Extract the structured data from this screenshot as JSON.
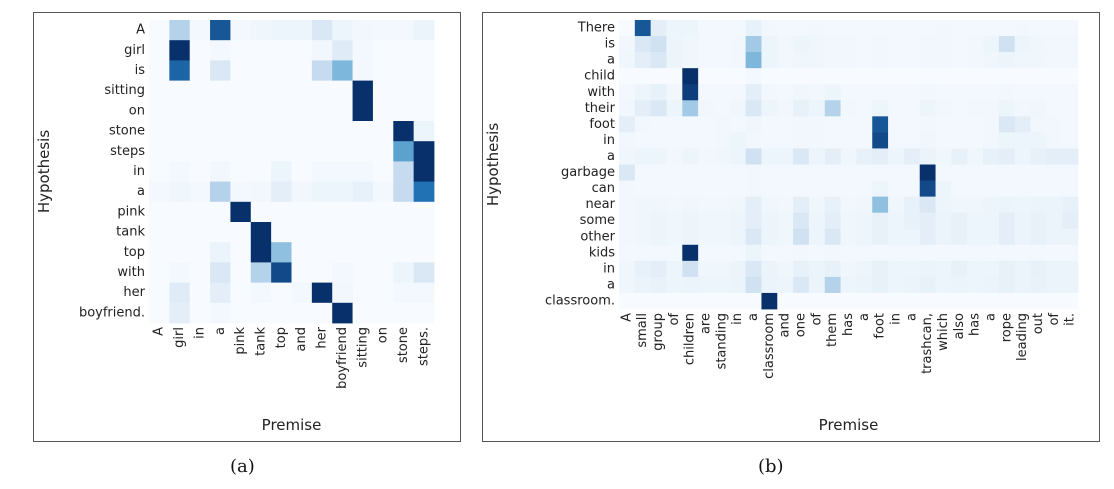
{
  "captions": [
    "(a)",
    "(b)"
  ],
  "chart_data": [
    {
      "type": "heatmap",
      "title": "",
      "xlabel": "Premise",
      "ylabel": "Hypothesis",
      "x": [
        "A",
        "girl",
        "in",
        "a",
        "pink",
        "tank",
        "top",
        "and",
        "her",
        "boyfriend",
        "sitting",
        "on",
        "stone",
        "steps."
      ],
      "y": [
        "A",
        "girl",
        "is",
        "sitting",
        "on",
        "stone",
        "steps",
        "in",
        "a",
        "pink",
        "tank",
        "top",
        "with",
        "her",
        "boyfriend."
      ],
      "colormap": "Blues",
      "range": [
        0,
        1
      ],
      "values": [
        [
          0,
          0.3,
          0.02,
          0.85,
          0.02,
          0.04,
          0.05,
          0.05,
          0.15,
          0.05,
          0.03,
          0.02,
          0.02,
          0.06
        ],
        [
          0,
          1.0,
          0,
          0.02,
          0,
          0,
          0,
          0,
          0.03,
          0.12,
          0.02,
          0,
          0,
          0
        ],
        [
          0,
          0.8,
          0,
          0.15,
          0,
          0,
          0,
          0,
          0.25,
          0.45,
          0.02,
          0,
          0,
          0
        ],
        [
          0,
          0,
          0,
          0,
          0,
          0,
          0,
          0,
          0,
          0,
          1.0,
          0,
          0,
          0
        ],
        [
          0,
          0,
          0,
          0,
          0,
          0,
          0,
          0,
          0,
          0,
          1.0,
          0,
          0,
          0
        ],
        [
          0,
          0,
          0,
          0,
          0,
          0,
          0,
          0,
          0,
          0,
          0,
          0,
          1.0,
          0.05
        ],
        [
          0,
          0,
          0,
          0,
          0,
          0,
          0,
          0,
          0,
          0,
          0,
          0,
          0.55,
          1.0
        ],
        [
          0,
          0.02,
          0,
          0.03,
          0,
          0,
          0.05,
          0,
          0.02,
          0.02,
          0.02,
          0,
          0.25,
          1.0
        ],
        [
          0.02,
          0.04,
          0.02,
          0.3,
          0.02,
          0.03,
          0.1,
          0.03,
          0.05,
          0.05,
          0.08,
          0.02,
          0.25,
          0.75
        ],
        [
          0,
          0,
          0,
          0,
          1.0,
          0,
          0,
          0,
          0,
          0,
          0,
          0,
          0,
          0
        ],
        [
          0,
          0,
          0,
          0,
          0,
          1.0,
          0,
          0,
          0,
          0,
          0,
          0,
          0,
          0
        ],
        [
          0,
          0,
          0,
          0.06,
          0,
          1.0,
          0.4,
          0,
          0,
          0,
          0,
          0,
          0,
          0
        ],
        [
          0,
          0.02,
          0,
          0.15,
          0,
          0.3,
          0.9,
          0,
          0,
          0.02,
          0,
          0,
          0.05,
          0.15
        ],
        [
          0,
          0.12,
          0,
          0.1,
          0,
          0.02,
          0,
          0.02,
          1.0,
          0.03,
          0,
          0,
          0.02,
          0.02
        ],
        [
          0,
          0.1,
          0,
          0.02,
          0,
          0,
          0,
          0,
          0,
          1.0,
          0,
          0,
          0,
          0
        ]
      ]
    },
    {
      "type": "heatmap",
      "title": "",
      "xlabel": "Premise",
      "ylabel": "Hypothesis",
      "x": [
        "A",
        "small",
        "group",
        "of",
        "children",
        "are",
        "standing",
        "in",
        "a",
        "classroom",
        "and",
        "one",
        "of",
        "them",
        "has",
        "a",
        "foot",
        "in",
        "a",
        "trashcan,",
        "which",
        "also",
        "has",
        "a",
        "rope",
        "leading",
        "out",
        "of",
        "it."
      ],
      "y": [
        "There",
        "is",
        "a",
        "child",
        "with",
        "their",
        "foot",
        "in",
        "a",
        "garbage",
        "can",
        "near",
        "some",
        "other",
        "kids",
        "in",
        "a",
        "classroom."
      ],
      "colormap": "Blues",
      "range": [
        0,
        1
      ],
      "values": [
        [
          0,
          0.85,
          0.1,
          0.05,
          0.05,
          0.02,
          0.02,
          0.02,
          0.08,
          0.03,
          0.02,
          0.02,
          0.03,
          0.02,
          0.02,
          0.02,
          0.02,
          0.02,
          0.02,
          0.02,
          0.03,
          0.02,
          0.02,
          0.02,
          0.02,
          0.03,
          0.02,
          0.02,
          0.02
        ],
        [
          0.03,
          0.15,
          0.2,
          0.05,
          0.04,
          0.02,
          0.02,
          0.03,
          0.35,
          0.05,
          0.03,
          0.05,
          0.04,
          0.03,
          0.03,
          0.02,
          0.03,
          0.02,
          0.02,
          0.03,
          0.03,
          0.02,
          0.03,
          0.05,
          0.2,
          0.05,
          0.04,
          0.03,
          0.03
        ],
        [
          0.04,
          0.1,
          0.15,
          0.05,
          0.04,
          0.02,
          0.02,
          0.03,
          0.45,
          0.05,
          0.03,
          0.04,
          0.04,
          0.03,
          0.03,
          0.02,
          0.03,
          0.02,
          0.02,
          0.03,
          0.03,
          0.02,
          0.03,
          0.04,
          0.05,
          0.04,
          0.04,
          0.03,
          0.03
        ],
        [
          0,
          0,
          0,
          0,
          1.0,
          0,
          0,
          0,
          0.02,
          0,
          0,
          0,
          0,
          0,
          0,
          0,
          0,
          0,
          0,
          0,
          0,
          0,
          0,
          0,
          0,
          0,
          0,
          0,
          0
        ],
        [
          0.02,
          0.05,
          0.08,
          0.03,
          0.95,
          0.02,
          0.02,
          0.02,
          0.1,
          0.03,
          0.02,
          0.04,
          0.03,
          0.05,
          0.02,
          0.02,
          0.02,
          0.02,
          0.02,
          0.03,
          0.02,
          0.02,
          0.02,
          0.02,
          0.03,
          0.02,
          0.02,
          0.02,
          0.02
        ],
        [
          0.03,
          0.1,
          0.15,
          0.05,
          0.35,
          0.03,
          0.02,
          0.04,
          0.15,
          0.05,
          0.03,
          0.08,
          0.05,
          0.3,
          0.03,
          0.02,
          0.05,
          0.02,
          0.02,
          0.05,
          0.03,
          0.02,
          0.03,
          0.03,
          0.05,
          0.03,
          0.04,
          0.02,
          0.02
        ],
        [
          0.1,
          0.03,
          0.02,
          0.02,
          0.02,
          0.02,
          0.03,
          0.02,
          0.04,
          0.02,
          0.02,
          0.03,
          0.03,
          0.02,
          0.02,
          0.02,
          0.85,
          0.02,
          0.02,
          0.03,
          0.02,
          0.02,
          0.02,
          0.03,
          0.15,
          0.1,
          0.03,
          0.03,
          0.02
        ],
        [
          0.03,
          0.02,
          0.02,
          0.02,
          0.02,
          0.02,
          0.03,
          0.05,
          0.03,
          0.02,
          0.02,
          0.03,
          0.03,
          0.02,
          0.02,
          0.02,
          0.9,
          0.02,
          0.02,
          0.04,
          0.02,
          0.02,
          0.02,
          0.03,
          0.05,
          0.05,
          0.05,
          0.03,
          0.02
        ],
        [
          0.04,
          0.05,
          0.05,
          0.03,
          0.05,
          0.03,
          0.04,
          0.05,
          0.2,
          0.05,
          0.05,
          0.15,
          0.05,
          0.1,
          0.04,
          0.08,
          0.1,
          0.05,
          0.1,
          0.06,
          0.04,
          0.08,
          0.04,
          0.08,
          0.1,
          0.05,
          0.08,
          0.1,
          0.1
        ],
        [
          0.15,
          0.02,
          0.02,
          0.02,
          0.02,
          0.02,
          0.02,
          0.02,
          0.03,
          0.02,
          0.02,
          0.02,
          0.02,
          0.02,
          0.02,
          0.02,
          0.02,
          0.02,
          0.02,
          1.0,
          0.02,
          0.02,
          0.02,
          0.02,
          0.02,
          0.02,
          0.02,
          0.02,
          0.02
        ],
        [
          0.03,
          0.02,
          0.02,
          0.02,
          0.02,
          0.02,
          0.02,
          0.02,
          0.03,
          0.02,
          0.02,
          0.02,
          0.02,
          0.02,
          0.02,
          0.02,
          0.05,
          0.02,
          0.02,
          0.9,
          0.05,
          0.02,
          0.02,
          0.02,
          0.02,
          0.02,
          0.02,
          0.02,
          0.02
        ],
        [
          0.03,
          0.04,
          0.04,
          0.03,
          0.04,
          0.03,
          0.03,
          0.04,
          0.1,
          0.04,
          0.03,
          0.1,
          0.04,
          0.08,
          0.03,
          0.04,
          0.4,
          0.04,
          0.08,
          0.15,
          0.05,
          0.04,
          0.04,
          0.05,
          0.06,
          0.05,
          0.06,
          0.06,
          0.08
        ],
        [
          0.03,
          0.04,
          0.05,
          0.04,
          0.05,
          0.04,
          0.04,
          0.05,
          0.1,
          0.05,
          0.04,
          0.15,
          0.05,
          0.1,
          0.04,
          0.05,
          0.08,
          0.05,
          0.08,
          0.1,
          0.06,
          0.08,
          0.05,
          0.05,
          0.1,
          0.06,
          0.08,
          0.06,
          0.1
        ],
        [
          0.03,
          0.04,
          0.05,
          0.04,
          0.05,
          0.04,
          0.04,
          0.05,
          0.15,
          0.05,
          0.04,
          0.2,
          0.05,
          0.15,
          0.04,
          0.05,
          0.08,
          0.05,
          0.05,
          0.1,
          0.06,
          0.08,
          0.05,
          0.05,
          0.1,
          0.06,
          0.08,
          0.06,
          0.06
        ],
        [
          0.02,
          0.02,
          0.02,
          0.02,
          1.0,
          0.02,
          0.02,
          0.02,
          0.05,
          0.02,
          0.02,
          0.03,
          0.02,
          0.03,
          0.02,
          0.02,
          0.02,
          0.02,
          0.02,
          0.02,
          0.02,
          0.02,
          0.02,
          0.02,
          0.02,
          0.02,
          0.02,
          0.02,
          0.02
        ],
        [
          0.04,
          0.08,
          0.1,
          0.05,
          0.2,
          0.04,
          0.04,
          0.06,
          0.15,
          0.06,
          0.04,
          0.08,
          0.06,
          0.08,
          0.04,
          0.05,
          0.08,
          0.05,
          0.05,
          0.06,
          0.05,
          0.08,
          0.05,
          0.05,
          0.08,
          0.06,
          0.08,
          0.06,
          0.06
        ],
        [
          0.04,
          0.06,
          0.07,
          0.05,
          0.06,
          0.05,
          0.05,
          0.06,
          0.2,
          0.06,
          0.05,
          0.15,
          0.06,
          0.3,
          0.05,
          0.06,
          0.08,
          0.05,
          0.06,
          0.08,
          0.05,
          0.06,
          0.05,
          0.06,
          0.08,
          0.06,
          0.07,
          0.06,
          0.06
        ],
        [
          0,
          0,
          0,
          0,
          0,
          0,
          0,
          0,
          0,
          1.0,
          0,
          0,
          0,
          0,
          0,
          0,
          0,
          0,
          0,
          0,
          0,
          0,
          0,
          0,
          0,
          0,
          0,
          0,
          0
        ]
      ]
    }
  ]
}
